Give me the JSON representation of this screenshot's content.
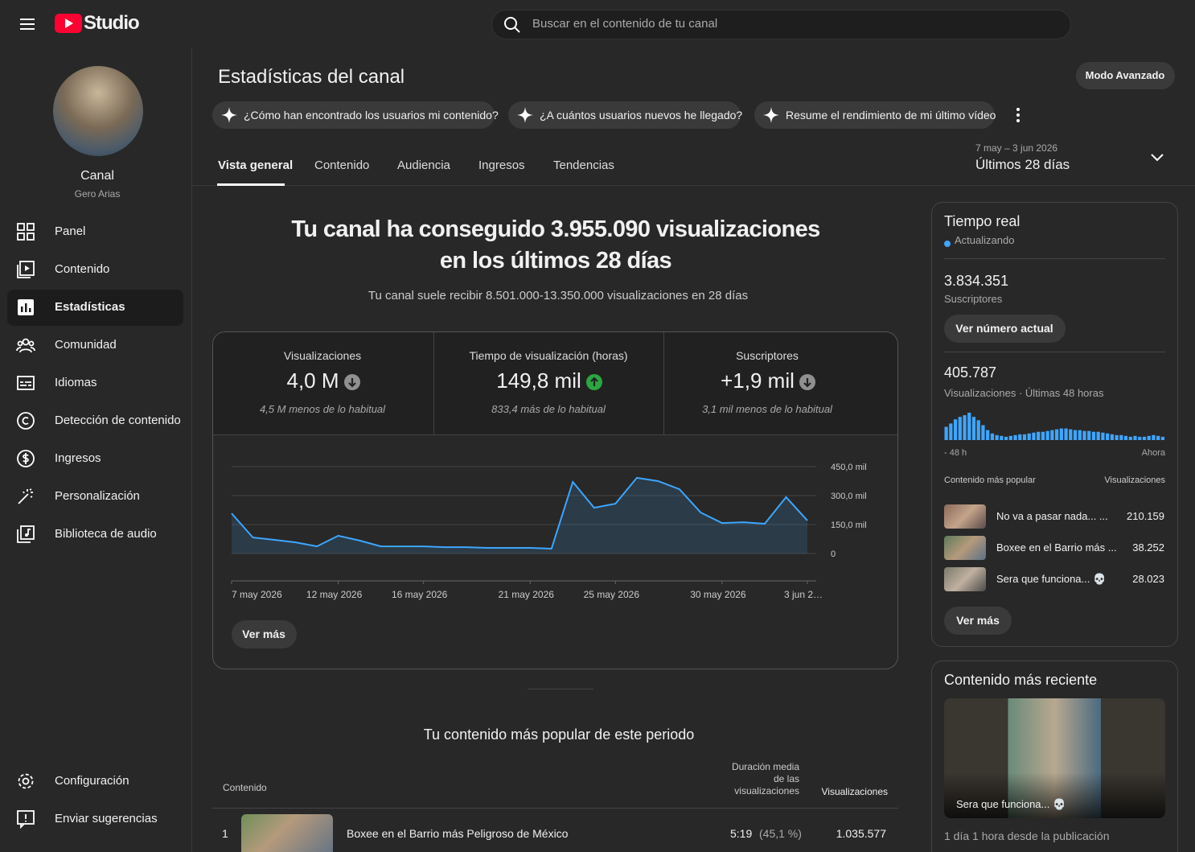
{
  "header": {
    "logo": "Studio",
    "search_placeholder": "Buscar en el contenido de tu canal"
  },
  "sidebar": {
    "channel_label": "Canal",
    "channel_name": "Gero Arias",
    "nav": [
      "Panel",
      "Contenido",
      "Estadísticas",
      "Comunidad",
      "Idiomas",
      "Detección de contenido",
      "Ingresos",
      "Personalización",
      "Biblioteca de audio"
    ],
    "bottom": [
      "Configuración",
      "Enviar sugerencias"
    ]
  },
  "page": {
    "title": "Estadísticas del canal",
    "advanced_button": "Modo Avanzado",
    "suggestions": [
      "¿Cómo han encontrado los usuarios mi contenido?",
      "¿A cuántos usuarios nuevos he llegado?",
      "Resume el rendimiento de mi último vídeo"
    ],
    "tabs": [
      "Vista general",
      "Contenido",
      "Audiencia",
      "Ingresos",
      "Tendencias"
    ],
    "date_range": "7 may – 3 jun 2026",
    "period": "Últimos 28 días"
  },
  "summary": {
    "headline": "Tu canal ha conseguido 3.955.090 visualizaciones en los últimos 28 días",
    "subline": "Tu canal suele recibir 8.501.000-13.350.000 visualizaciones en 28 días"
  },
  "metrics": [
    {
      "label": "Visualizaciones",
      "value": "4,0 M",
      "trend": "down",
      "note": "4,5 M menos de lo habitual"
    },
    {
      "label": "Tiempo de visualización (horas)",
      "value": "149,8 mil",
      "trend": "up",
      "note": "833,4 más de lo habitual"
    },
    {
      "label": "Suscriptores",
      "value": "+1,9 mil",
      "trend": "down",
      "note": "3,1 mil menos de lo habitual"
    }
  ],
  "chart_data": [
    {
      "type": "line",
      "color": "#3ea6ff",
      "grid": true,
      "categories": [
        "7 may 2026",
        null,
        null,
        null,
        null,
        "12 may 2026",
        null,
        null,
        null,
        "16 may 2026",
        null,
        null,
        null,
        null,
        "21 may 2026",
        null,
        null,
        null,
        "25 may 2026",
        null,
        null,
        null,
        null,
        "30 may 2026",
        null,
        null,
        null,
        "3 jun 2…"
      ],
      "values": [
        208000,
        83000,
        71000,
        58000,
        37000,
        92000,
        67000,
        37000,
        37000,
        37000,
        33000,
        33000,
        29000,
        29000,
        29000,
        25000,
        371000,
        237000,
        258000,
        392000,
        375000,
        333000,
        212000,
        158000,
        162000,
        154000,
        292000,
        171000
      ],
      "ylim": [
        0,
        450000
      ],
      "yticks": [
        0,
        {
          "value": 150000,
          "label": "150,0 mil"
        },
        {
          "value": 300000,
          "label": "300,0 mil"
        },
        {
          "value": 450000,
          "label": "450,0 mil"
        }
      ]
    },
    {
      "type": "bar",
      "color": "#3ea6ff",
      "categories": [
        "- 48 h",
        null,
        null,
        null,
        null,
        null,
        null,
        null,
        null,
        null,
        null,
        null,
        null,
        null,
        null,
        null,
        null,
        null,
        null,
        null,
        null,
        null,
        null,
        null,
        null,
        null,
        null,
        null,
        null,
        null,
        null,
        null,
        null,
        null,
        null,
        null,
        null,
        null,
        null,
        null,
        null,
        null,
        null,
        null,
        null,
        null,
        null,
        "Ahora"
      ],
      "values": [
        13600,
        17000,
        21250,
        23800,
        25500,
        28050,
        23800,
        20400,
        15300,
        10200,
        6800,
        5100,
        4250,
        3400,
        4250,
        5100,
        5950,
        5950,
        6800,
        7650,
        8500,
        8500,
        9350,
        10200,
        11050,
        11900,
        11900,
        11050,
        10200,
        10200,
        9350,
        9350,
        8500,
        8500,
        7650,
        6800,
        5950,
        5100,
        5100,
        4250,
        3400,
        4250,
        3400,
        3400,
        4250,
        5100,
        4250,
        3400
      ]
    }
  ],
  "see_more": "Ver más",
  "realtime": {
    "title": "Tiempo real",
    "status": "Actualizando",
    "subscribers": "3.834.351",
    "subscribers_label": "Suscriptores",
    "button": "Ver número actual",
    "views": "405.787",
    "views_label": "Visualizaciones · Últimas 48 horas",
    "popular_header": "Contenido más popular",
    "views_header": "Visualizaciones",
    "popular": [
      {
        "title": "No va a pasar nada... ...",
        "views": "210.159"
      },
      {
        "title": "Boxee en el Barrio más ...",
        "views": "38.252"
      },
      {
        "title": "Sera que funciona... 💀",
        "views": "28.023"
      }
    ],
    "more_button": "Ver más"
  },
  "recent": {
    "title": "Contenido más reciente",
    "video_title": "Sera que funciona... 💀",
    "age": "1 día 1 hora desde la publicación"
  },
  "top_content": {
    "title": "Tu contenido más popular de este periodo",
    "col_content": "Contenido",
    "col_duration": "Duración media de las visualizaciones",
    "col_views": "Visualizaciones",
    "rows": [
      {
        "rank": "1",
        "title": "Boxee en el Barrio más Peligroso de México",
        "duration": "5:19",
        "percent": "(45,1 %)",
        "views": "1.035.577"
      }
    ]
  }
}
